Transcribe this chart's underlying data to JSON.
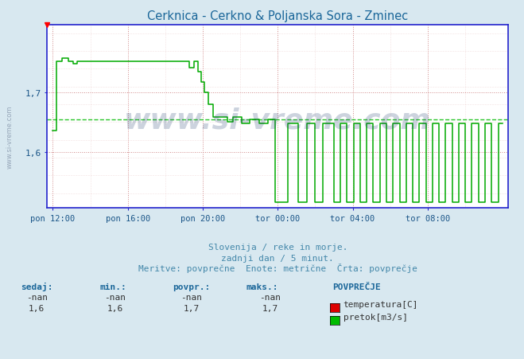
{
  "title": "Cerknica - Cerkno & Poljanska Sora - Zminec",
  "title_color": "#1a6699",
  "bg_color": "#d8e8f0",
  "plot_bg_color": "#ffffff",
  "grid_color_major": "#e08080",
  "line_color_pretok": "#00aa00",
  "avg_line_color": "#00bb00",
  "x_label_color": "#1a5588",
  "y_label_color": "#1a5588",
  "subtitle1": "Slovenija / reke in morje.",
  "subtitle2": "zadnji dan / 5 minut.",
  "subtitle3": "Meritve: povprečne  Enote: metrične  Črta: povprečje",
  "subtitle_color": "#4488aa",
  "watermark": "www.si-vreme.com",
  "watermark_color": "#1a3a6a",
  "watermark_alpha": 0.22,
  "yticks": [
    1.6,
    1.7
  ],
  "ylim": [
    1.505,
    1.815
  ],
  "xtick_labels": [
    "pon 12:00",
    "pon 16:00",
    "pon 20:00",
    "tor 00:00",
    "tor 04:00",
    "tor 08:00"
  ],
  "xtick_positions": [
    0,
    4,
    8,
    12,
    16,
    20
  ],
  "footer_col_labels": [
    "sedaj:",
    "min.:",
    "povpr.:",
    "maks.:"
  ],
  "footer_row1": [
    "-nan",
    "-nan",
    "-nan",
    "-nan"
  ],
  "footer_row2": [
    "1,6",
    "1,6",
    "1,7",
    "1,7"
  ],
  "legend_label1": "temperatura[C]",
  "legend_label2": "pretok[m3/s]",
  "legend_color1": "#dd0000",
  "legend_color2": "#00bb00",
  "avg_pretok": 1.655,
  "axis_color": "#2222cc",
  "spine_color": "#2222cc"
}
